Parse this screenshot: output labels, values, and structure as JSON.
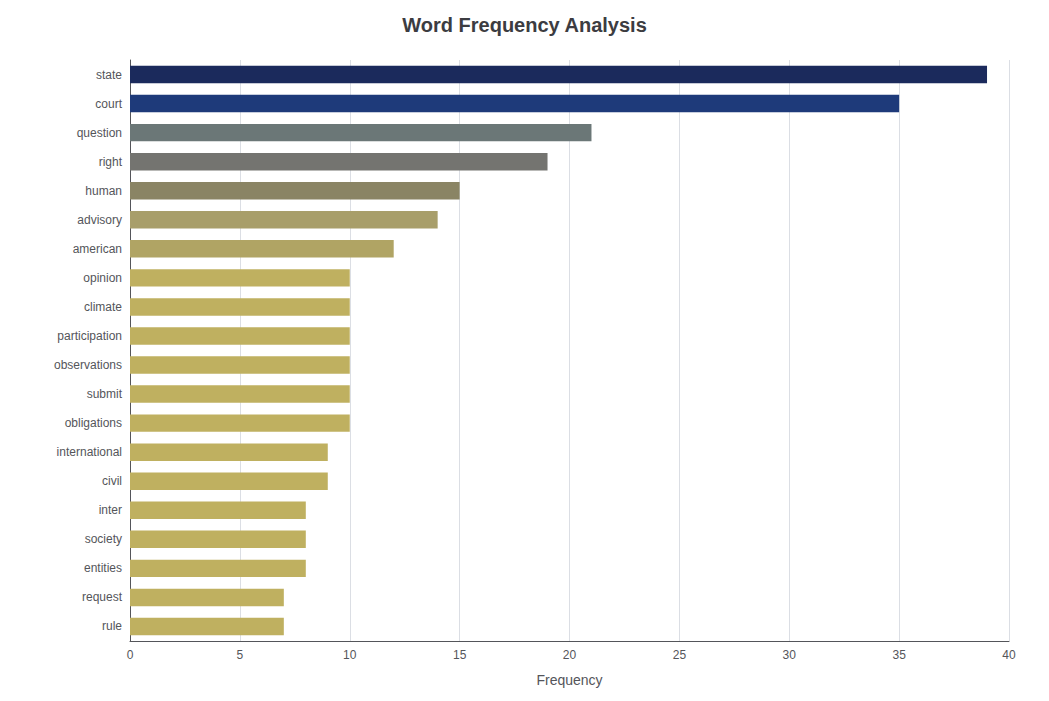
{
  "chart_data": {
    "type": "bar",
    "orientation": "horizontal",
    "title": "Word Frequency Analysis",
    "xlabel": "Frequency",
    "categories": [
      "state",
      "court",
      "question",
      "right",
      "human",
      "advisory",
      "american",
      "opinion",
      "climate",
      "participation",
      "observations",
      "submit",
      "obligations",
      "international",
      "civil",
      "inter",
      "society",
      "entities",
      "request",
      "rule"
    ],
    "values": [
      39,
      35,
      21,
      19,
      15,
      14,
      12,
      10,
      10,
      10,
      10,
      10,
      10,
      9,
      9,
      8,
      8,
      8,
      7,
      7
    ],
    "colors": [
      "#1b2a5c",
      "#1e3a7a",
      "#6b7777",
      "#747470",
      "#8a8464",
      "#a89e6a",
      "#b0a464",
      "#bfb060",
      "#bfb060",
      "#bfb060",
      "#bfb060",
      "#bfb060",
      "#bfb060",
      "#bfb060",
      "#bfb060",
      "#bfb060",
      "#bfb060",
      "#bfb060",
      "#bfb060",
      "#bfb060"
    ],
    "xlim": [
      0,
      40
    ],
    "xticks": [
      0,
      5,
      10,
      15,
      20,
      25,
      30,
      35,
      40
    ],
    "grid": true
  }
}
